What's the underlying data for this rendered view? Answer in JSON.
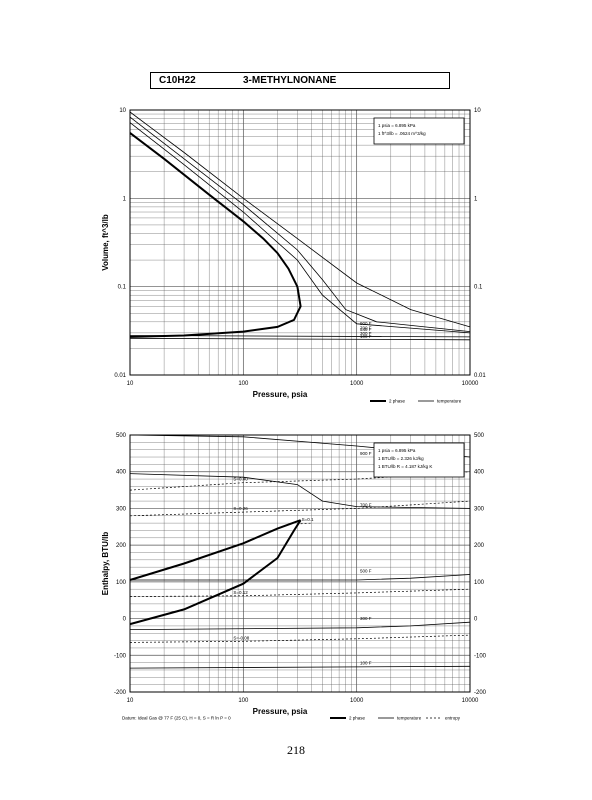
{
  "header": {
    "formula": "C10H22",
    "compound": "3-METHYLNONANE"
  },
  "page_number": "218",
  "chart_data": [
    {
      "type": "line",
      "name": "volume",
      "xlabel": "Pressure, psia",
      "ylabel": "Volume, ft^3/lb",
      "xscale": "log",
      "yscale": "log",
      "xlim": [
        10,
        10000
      ],
      "ylim": [
        0.01,
        10
      ],
      "x_ticks": [
        "10",
        "100",
        "1000",
        "10000"
      ],
      "y_ticks": [
        "10",
        "1",
        "0.1",
        "0.01"
      ],
      "y_ticks_right": [
        "10",
        "1",
        "0.1",
        "0.01"
      ],
      "grid": true,
      "conversion_box": [
        "1 psia = 6.895 kPa",
        "1 ft^3/lb = .0624 m^3/kg"
      ],
      "legend": [
        "2 phase",
        "temperature"
      ],
      "legend_position": "below-right",
      "series": [
        {
          "style": "2 phase",
          "x": [
            10,
            20,
            50,
            100,
            150,
            200,
            250,
            300
          ],
          "y": [
            5.5,
            2.8,
            1.1,
            0.55,
            0.35,
            0.24,
            0.16,
            0.1
          ]
        },
        {
          "style": "2 phase",
          "x": [
            10,
            30,
            100,
            200,
            280,
            320,
            300
          ],
          "y": [
            0.027,
            0.028,
            0.031,
            0.035,
            0.042,
            0.06,
            0.1
          ]
        },
        {
          "label": "900 F",
          "style": "temperature",
          "x": [
            10,
            30,
            100,
            300,
            1000,
            3000,
            10000
          ],
          "y": [
            9.5,
            3.3,
            1.0,
            0.35,
            0.11,
            0.055,
            0.035
          ]
        },
        {
          "label": "700 F",
          "style": "temperature",
          "x": [
            10,
            30,
            100,
            300,
            500,
            800,
            1500,
            10000
          ],
          "y": [
            8.3,
            2.8,
            0.85,
            0.26,
            0.12,
            0.055,
            0.04,
            0.031
          ]
        },
        {
          "label": "540 F",
          "style": "temperature",
          "x": [
            10,
            30,
            100,
            300,
            500,
            1000,
            10000
          ],
          "y": [
            7.2,
            2.4,
            0.7,
            0.2,
            0.08,
            0.038,
            0.03
          ]
        },
        {
          "label": "300 F",
          "style": "temperature",
          "x": [
            10,
            10000
          ],
          "y": [
            0.028,
            0.027
          ]
        },
        {
          "label": "100 F",
          "style": "temperature",
          "x": [
            10,
            10000
          ],
          "y": [
            0.026,
            0.025
          ]
        }
      ]
    },
    {
      "type": "line",
      "name": "enthalpy",
      "xlabel": "Pressure, psia",
      "ylabel": "Enthalpy, BTU/lb",
      "xscale": "log",
      "xlim": [
        10,
        10000
      ],
      "ylim": [
        -200,
        500
      ],
      "x_ticks": [
        "10",
        "100",
        "1000",
        "10000"
      ],
      "y_ticks": [
        "500",
        "400",
        "300",
        "200",
        "100",
        "0",
        "-100",
        "-200"
      ],
      "y_ticks_right": [
        "500",
        "400",
        "300",
        "200",
        "100",
        "0",
        "-100",
        "-200"
      ],
      "grid": true,
      "conversion_box": [
        "1 psia = 6.895 kPa",
        "1 BTU/lb = 2.326 kJ/kg",
        "1 BTU/lb R = 4.187 kJ/kg K"
      ],
      "footnote": "Datum: Ideal Gas @ 77 F (25 C), H = 0, S = R ln P = 0",
      "legend": [
        "2 phase",
        "temperature",
        "entropy"
      ],
      "legend_position": "below-right",
      "series": [
        {
          "style": "2 phase",
          "x": [
            10,
            30,
            100,
            200,
            300,
            320
          ],
          "y": [
            105,
            150,
            205,
            245,
            265,
            268
          ]
        },
        {
          "style": "2 phase",
          "x": [
            10,
            30,
            100,
            200,
            280,
            320
          ],
          "y": [
            -15,
            25,
            95,
            165,
            240,
            268
          ]
        },
        {
          "label": "900 F",
          "style": "temperature",
          "x": [
            10,
            100,
            1000,
            10000
          ],
          "y": [
            500,
            495,
            470,
            440
          ]
        },
        {
          "label": "700 F",
          "style": "temperature",
          "x": [
            10,
            100,
            300,
            500,
            1000,
            10000
          ],
          "y": [
            395,
            385,
            365,
            320,
            305,
            300
          ]
        },
        {
          "label": "500 F",
          "style": "temperature",
          "x": [
            10,
            1000,
            3000,
            10000
          ],
          "y": [
            105,
            105,
            110,
            120
          ]
        },
        {
          "label": "300 F",
          "style": "temperature",
          "x": [
            10,
            1000,
            3000,
            10000
          ],
          "y": [
            -30,
            -25,
            -20,
            -10
          ]
        },
        {
          "label": "100 F",
          "style": "temperature",
          "x": [
            10,
            10000
          ],
          "y": [
            -135,
            -130
          ]
        },
        {
          "label": "S=0.40",
          "style": "entropy",
          "x": [
            10,
            100,
            1000,
            10000
          ],
          "y": [
            350,
            370,
            380,
            400
          ]
        },
        {
          "label": "S=0.26",
          "style": "entropy",
          "x": [
            10,
            100,
            1000,
            10000
          ],
          "y": [
            280,
            290,
            300,
            320
          ]
        },
        {
          "label": "S=0.1",
          "style": "entropy",
          "x": [
            320,
            400
          ],
          "y": [
            258,
            260
          ]
        },
        {
          "label": "S=0.12",
          "style": "entropy",
          "x": [
            10,
            100,
            1000,
            10000
          ],
          "y": [
            60,
            62,
            70,
            80
          ]
        },
        {
          "label": "S=-0.08",
          "style": "entropy",
          "x": [
            10,
            100,
            1000,
            10000
          ],
          "y": [
            -65,
            -62,
            -55,
            -45
          ]
        }
      ]
    }
  ]
}
